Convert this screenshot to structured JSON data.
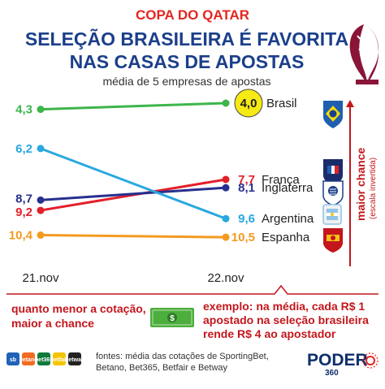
{
  "header": {
    "kicker": "COPA DO QATAR",
    "title_line1": "SELEÇÃO BRASILEIRA É FAVORITA",
    "title_line2": "NAS CASAS DE APOSTAS",
    "subtitle": "média de 5 empresas de apostas"
  },
  "chart_data": {
    "type": "line",
    "x": [
      "21.nov",
      "22.nov"
    ],
    "y_axis": {
      "inverted": true
    },
    "axis_label": {
      "main": "maior chance",
      "note": "(escala invertida)"
    },
    "series": [
      {
        "name": "Brasil",
        "values": [
          4.3,
          4.0
        ],
        "labels": [
          "4,3",
          "4,0"
        ],
        "color": "#3db54a",
        "highlight": true
      },
      {
        "name": "França",
        "values": [
          9.2,
          7.7
        ],
        "labels": [
          "9,2",
          "7,7"
        ],
        "color": "#e3202a"
      },
      {
        "name": "Inglaterra",
        "values": [
          8.7,
          8.1
        ],
        "labels": [
          "8,7",
          "8,1"
        ],
        "color": "#27308f"
      },
      {
        "name": "Argentina",
        "values": [
          6.2,
          9.6
        ],
        "labels": [
          "6,2",
          "9,6"
        ],
        "color": "#2aa8e0"
      },
      {
        "name": "Espanha",
        "values": [
          10.4,
          10.5
        ],
        "labels": [
          "10,4",
          "10,5"
        ],
        "color": "#f39a1f"
      }
    ]
  },
  "notes": {
    "left_line1": "quanto menor a cotação,",
    "left_line2": "maior a chance",
    "right_line1": "exemplo: na média, cada R$ 1",
    "right_line2": "apostado na seleção brasileira",
    "right_line3": "rende R$ 4 ao apostador"
  },
  "footer": {
    "source_line1": "fontes: média das cotações de SportingBet,",
    "source_line2": "Betano, Bet365, Betfair e Betway",
    "brand": "PODER",
    "brand_number": "360",
    "bookmaker_logos": [
      "sb",
      "betano",
      "bet365",
      "betfair",
      "betway"
    ]
  },
  "icons": [
    "world-cup-logo-icon",
    "money-bill-icon",
    "flag-brazil-icon",
    "flag-france-icon",
    "flag-england-icon",
    "flag-argentina-icon",
    "flag-spain-icon",
    "arrow-up-icon"
  ]
}
